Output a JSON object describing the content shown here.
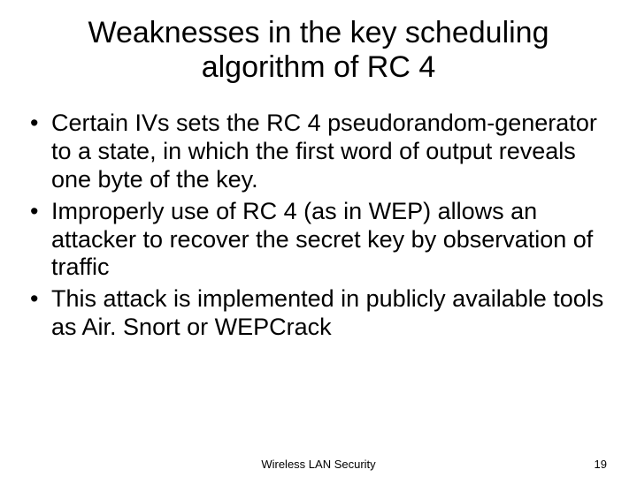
{
  "title_fontsize": 34,
  "body_fontsize": 27,
  "footer_fontsize": 13,
  "background_color": "#ffffff",
  "text_color": "#000000",
  "title": "Weaknesses in the key scheduling algorithm of RC 4",
  "bullets": [
    "Certain IVs sets the RC 4 pseudorandom-generator to a state, in which the first word of output reveals one byte of the key.",
    "Improperly use of RC 4 (as in WEP) allows an attacker to recover the secret key by observation of traffic",
    "This attack is implemented in publicly available tools as Air. Snort or WEPCrack"
  ],
  "footer": {
    "center": "Wireless LAN Security",
    "page": "19"
  }
}
